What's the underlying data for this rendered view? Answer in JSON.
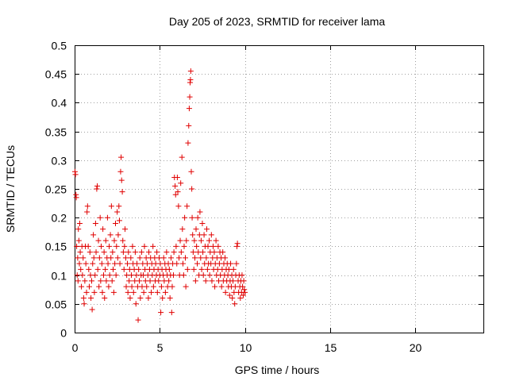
{
  "chart_data": {
    "type": "scatter",
    "title": "Day 205 of 2023, SRMTID for receiver lama",
    "xlabel": "GPS time / hours",
    "ylabel": "SRMTID / TECUs",
    "xlim": [
      0,
      24
    ],
    "ylim": [
      0,
      0.5
    ],
    "x_ticks": [
      0,
      5,
      10,
      15,
      20
    ],
    "x_tick_labels": [
      "0",
      "5",
      "10",
      "15",
      "20"
    ],
    "y_ticks": [
      0,
      0.05,
      0.1,
      0.15,
      0.2,
      0.25,
      0.3,
      0.35,
      0.4,
      0.45,
      0.5
    ],
    "y_tick_labels": [
      "0",
      "0.05",
      "0.1",
      "0.15",
      "0.2",
      "0.25",
      "0.3",
      "0.35",
      "0.4",
      "0.45",
      "0.5"
    ],
    "grid": true,
    "marker": "+",
    "color": "#e00000",
    "series": [
      {
        "name": "SRMTID",
        "points": [
          [
            0.02,
            0.28
          ],
          [
            0.05,
            0.275
          ],
          [
            0.08,
            0.24
          ],
          [
            0.1,
            0.235
          ],
          [
            0.12,
            0.15
          ],
          [
            0.15,
            0.1
          ],
          [
            0.18,
            0.13
          ],
          [
            0.2,
            0.09
          ],
          [
            0.22,
            0.18
          ],
          [
            0.25,
            0.16
          ],
          [
            0.28,
            0.12
          ],
          [
            0.3,
            0.19
          ],
          [
            0.33,
            0.14
          ],
          [
            0.36,
            0.11
          ],
          [
            0.4,
            0.08
          ],
          [
            0.43,
            0.15
          ],
          [
            0.46,
            0.1
          ],
          [
            0.5,
            0.13
          ],
          [
            0.53,
            0.06
          ],
          [
            0.56,
            0.05
          ],
          [
            0.6,
            0.09
          ],
          [
            0.63,
            0.15
          ],
          [
            0.66,
            0.12
          ],
          [
            0.7,
            0.07
          ],
          [
            0.73,
            0.21
          ],
          [
            0.76,
            0.22
          ],
          [
            0.8,
            0.15
          ],
          [
            0.83,
            0.11
          ],
          [
            0.86,
            0.08
          ],
          [
            0.9,
            0.14
          ],
          [
            0.93,
            0.1
          ],
          [
            0.96,
            0.06
          ],
          [
            1.0,
            0.09
          ],
          [
            1.03,
            0.04
          ],
          [
            1.06,
            0.12
          ],
          [
            1.1,
            0.17
          ],
          [
            1.13,
            0.13
          ],
          [
            1.16,
            0.07
          ],
          [
            1.2,
            0.1
          ],
          [
            1.23,
            0.19
          ],
          [
            1.26,
            0.14
          ],
          [
            1.3,
            0.25
          ],
          [
            1.33,
            0.255
          ],
          [
            1.36,
            0.11
          ],
          [
            1.4,
            0.16
          ],
          [
            1.43,
            0.08
          ],
          [
            1.46,
            0.13
          ],
          [
            1.5,
            0.2
          ],
          [
            1.53,
            0.09
          ],
          [
            1.56,
            0.15
          ],
          [
            1.6,
            0.12
          ],
          [
            1.63,
            0.07
          ],
          [
            1.66,
            0.18
          ],
          [
            1.7,
            0.1
          ],
          [
            1.73,
            0.14
          ],
          [
            1.76,
            0.06
          ],
          [
            1.8,
            0.11
          ],
          [
            1.83,
            0.16
          ],
          [
            1.86,
            0.09
          ],
          [
            1.9,
            0.13
          ],
          [
            1.93,
            0.2
          ],
          [
            1.96,
            0.12
          ],
          [
            2.0,
            0.08
          ],
          [
            2.03,
            0.15
          ],
          [
            2.06,
            0.1
          ],
          [
            2.1,
            0.17
          ],
          [
            2.13,
            0.13
          ],
          [
            2.16,
            0.22
          ],
          [
            2.2,
            0.09
          ],
          [
            2.23,
            0.14
          ],
          [
            2.26,
            0.11
          ],
          [
            2.3,
            0.07
          ],
          [
            2.33,
            0.16
          ],
          [
            2.36,
            0.12
          ],
          [
            2.4,
            0.19
          ],
          [
            2.43,
            0.1
          ],
          [
            2.46,
            0.15
          ],
          [
            2.5,
            0.21
          ],
          [
            2.53,
            0.13
          ],
          [
            2.56,
            0.17
          ],
          [
            2.6,
            0.22
          ],
          [
            2.63,
            0.195
          ],
          [
            2.66,
            0.12
          ],
          [
            2.7,
            0.28
          ],
          [
            2.73,
            0.305
          ],
          [
            2.76,
            0.265
          ],
          [
            2.8,
            0.245
          ],
          [
            2.83,
            0.16
          ],
          [
            2.86,
            0.14
          ],
          [
            2.9,
            0.11
          ],
          [
            2.93,
            0.15
          ],
          [
            2.96,
            0.18
          ],
          [
            3.0,
            0.13
          ],
          [
            3.03,
            0.08
          ],
          [
            3.06,
            0.1
          ],
          [
            3.1,
            0.12
          ],
          [
            3.13,
            0.07
          ],
          [
            3.16,
            0.14
          ],
          [
            3.2,
            0.09
          ],
          [
            3.23,
            0.11
          ],
          [
            3.26,
            0.06
          ],
          [
            3.3,
            0.13
          ],
          [
            3.33,
            0.1
          ],
          [
            3.36,
            0.08
          ],
          [
            3.4,
            0.15
          ],
          [
            3.43,
            0.12
          ],
          [
            3.46,
            0.07
          ],
          [
            3.5,
            0.11
          ],
          [
            3.53,
            0.09
          ],
          [
            3.56,
            0.14
          ],
          [
            3.6,
            0.05
          ],
          [
            3.63,
            0.1
          ],
          [
            3.66,
            0.12
          ],
          [
            3.7,
            0.08
          ],
          [
            3.73,
            0.022
          ],
          [
            3.76,
            0.11
          ],
          [
            3.8,
            0.09
          ],
          [
            3.83,
            0.13
          ],
          [
            3.86,
            0.06
          ],
          [
            3.9,
            0.1
          ],
          [
            3.93,
            0.14
          ],
          [
            3.96,
            0.08
          ],
          [
            4.0,
            0.12
          ],
          [
            4.03,
            0.1
          ],
          [
            4.06,
            0.07
          ],
          [
            4.1,
            0.15
          ],
          [
            4.13,
            0.11
          ],
          [
            4.16,
            0.09
          ],
          [
            4.2,
            0.13
          ],
          [
            4.23,
            0.08
          ],
          [
            4.26,
            0.12
          ],
          [
            4.3,
            0.1
          ],
          [
            4.33,
            0.06
          ],
          [
            4.36,
            0.14
          ],
          [
            4.4,
            0.11
          ],
          [
            4.43,
            0.09
          ],
          [
            4.46,
            0.13
          ],
          [
            4.5,
            0.07
          ],
          [
            4.53,
            0.12
          ],
          [
            4.56,
            0.1
          ],
          [
            4.6,
            0.15
          ],
          [
            4.63,
            0.08
          ],
          [
            4.66,
            0.11
          ],
          [
            4.7,
            0.13
          ],
          [
            4.73,
            0.09
          ],
          [
            4.76,
            0.12
          ],
          [
            4.8,
            0.1
          ],
          [
            4.83,
            0.14
          ],
          [
            4.86,
            0.07
          ],
          [
            4.9,
            0.11
          ],
          [
            4.93,
            0.09
          ],
          [
            4.96,
            0.13
          ],
          [
            5.0,
            0.1
          ],
          [
            5.03,
            0.12
          ],
          [
            5.06,
            0.035
          ],
          [
            5.1,
            0.08
          ],
          [
            5.13,
            0.11
          ],
          [
            5.16,
            0.06
          ],
          [
            5.2,
            0.1
          ],
          [
            5.23,
            0.13
          ],
          [
            5.26,
            0.09
          ],
          [
            5.3,
            0.12
          ],
          [
            5.33,
            0.07
          ],
          [
            5.36,
            0.11
          ],
          [
            5.4,
            0.14
          ],
          [
            5.43,
            0.1
          ],
          [
            5.46,
            0.08
          ],
          [
            5.5,
            0.12
          ],
          [
            5.53,
            0.09
          ],
          [
            5.56,
            0.11
          ],
          [
            5.6,
            0.06
          ],
          [
            5.63,
            0.1
          ],
          [
            5.66,
            0.13
          ],
          [
            5.7,
            0.035
          ],
          [
            5.73,
            0.08
          ],
          [
            5.76,
            0.12
          ],
          [
            5.8,
            0.1
          ],
          [
            5.83,
            0.14
          ],
          [
            5.86,
            0.27
          ],
          [
            5.9,
            0.255
          ],
          [
            5.93,
            0.24
          ],
          [
            5.96,
            0.15
          ],
          [
            6.0,
            0.12
          ],
          [
            6.03,
            0.27
          ],
          [
            6.06,
            0.245
          ],
          [
            6.1,
            0.22
          ],
          [
            6.13,
            0.13
          ],
          [
            6.16,
            0.1
          ],
          [
            6.2,
            0.16
          ],
          [
            6.23,
            0.26
          ],
          [
            6.26,
            0.14
          ],
          [
            6.3,
            0.305
          ],
          [
            6.33,
            0.18
          ],
          [
            6.36,
            0.12
          ],
          [
            6.4,
            0.1
          ],
          [
            6.43,
            0.15
          ],
          [
            6.46,
            0.2
          ],
          [
            6.5,
            0.13
          ],
          [
            6.53,
            0.08
          ],
          [
            6.56,
            0.16
          ],
          [
            6.6,
            0.22
          ],
          [
            6.63,
            0.11
          ],
          [
            6.66,
            0.33
          ],
          [
            6.7,
            0.36
          ],
          [
            6.73,
            0.39
          ],
          [
            6.76,
            0.41
          ],
          [
            6.78,
            0.435
          ],
          [
            6.8,
            0.44
          ],
          [
            6.82,
            0.455
          ],
          [
            6.85,
            0.28
          ],
          [
            6.88,
            0.25
          ],
          [
            6.9,
            0.2
          ],
          [
            6.93,
            0.17
          ],
          [
            6.96,
            0.14
          ],
          [
            7.0,
            0.11
          ],
          [
            7.03,
            0.16
          ],
          [
            7.06,
            0.13
          ],
          [
            7.1,
            0.09
          ],
          [
            7.13,
            0.18
          ],
          [
            7.16,
            0.15
          ],
          [
            7.2,
            0.12
          ],
          [
            7.23,
            0.2
          ],
          [
            7.26,
            0.14
          ],
          [
            7.3,
            0.1
          ],
          [
            7.33,
            0.17
          ],
          [
            7.36,
            0.21
          ],
          [
            7.4,
            0.13
          ],
          [
            7.43,
            0.16
          ],
          [
            7.46,
            0.11
          ],
          [
            7.5,
            0.19
          ],
          [
            7.53,
            0.14
          ],
          [
            7.56,
            0.1
          ],
          [
            7.6,
            0.17
          ],
          [
            7.63,
            0.12
          ],
          [
            7.66,
            0.15
          ],
          [
            7.7,
            0.09
          ],
          [
            7.73,
            0.13
          ],
          [
            7.76,
            0.18
          ],
          [
            7.8,
            0.11
          ],
          [
            7.83,
            0.15
          ],
          [
            7.86,
            0.12
          ],
          [
            7.9,
            0.16
          ],
          [
            7.93,
            0.1
          ],
          [
            7.96,
            0.14
          ],
          [
            8.0,
            0.12
          ],
          [
            8.03,
            0.17
          ],
          [
            8.06,
            0.09
          ],
          [
            8.1,
            0.13
          ],
          [
            8.13,
            0.15
          ],
          [
            8.16,
            0.11
          ],
          [
            8.2,
            0.14
          ],
          [
            8.23,
            0.08
          ],
          [
            8.26,
            0.12
          ],
          [
            8.3,
            0.16
          ],
          [
            8.33,
            0.1
          ],
          [
            8.36,
            0.13
          ],
          [
            8.4,
            0.11
          ],
          [
            8.43,
            0.15
          ],
          [
            8.46,
            0.09
          ],
          [
            8.5,
            0.12
          ],
          [
            8.53,
            0.14
          ],
          [
            8.56,
            0.1
          ],
          [
            8.6,
            0.13
          ],
          [
            8.63,
            0.08
          ],
          [
            8.66,
            0.11
          ],
          [
            8.7,
            0.14
          ],
          [
            8.73,
            0.09
          ],
          [
            8.76,
            0.12
          ],
          [
            8.8,
            0.1
          ],
          [
            8.83,
            0.13
          ],
          [
            8.86,
            0.07
          ],
          [
            8.9,
            0.11
          ],
          [
            8.93,
            0.09
          ],
          [
            8.96,
            0.12
          ],
          [
            9.0,
            0.1
          ],
          [
            9.03,
            0.08
          ],
          [
            9.06,
            0.11
          ],
          [
            9.1,
            0.065
          ],
          [
            9.13,
            0.09
          ],
          [
            9.16,
            0.12
          ],
          [
            9.2,
            0.08
          ],
          [
            9.23,
            0.1
          ],
          [
            9.26,
            0.06
          ],
          [
            9.3,
            0.09
          ],
          [
            9.33,
            0.11
          ],
          [
            9.36,
            0.07
          ],
          [
            9.4,
            0.05
          ],
          [
            9.43,
            0.08
          ],
          [
            9.46,
            0.1
          ],
          [
            9.5,
            0.12
          ],
          [
            9.53,
            0.15
          ],
          [
            9.56,
            0.155
          ],
          [
            9.6,
            0.09
          ],
          [
            9.63,
            0.07
          ],
          [
            9.66,
            0.1
          ],
          [
            9.7,
            0.08
          ],
          [
            9.73,
            0.06
          ],
          [
            9.76,
            0.09
          ],
          [
            9.8,
            0.07
          ],
          [
            9.83,
            0.1
          ],
          [
            9.86,
            0.08
          ],
          [
            9.9,
            0.065
          ],
          [
            9.93,
            0.09
          ],
          [
            9.96,
            0.075
          ],
          [
            10.0,
            0.07
          ]
        ]
      }
    ]
  }
}
